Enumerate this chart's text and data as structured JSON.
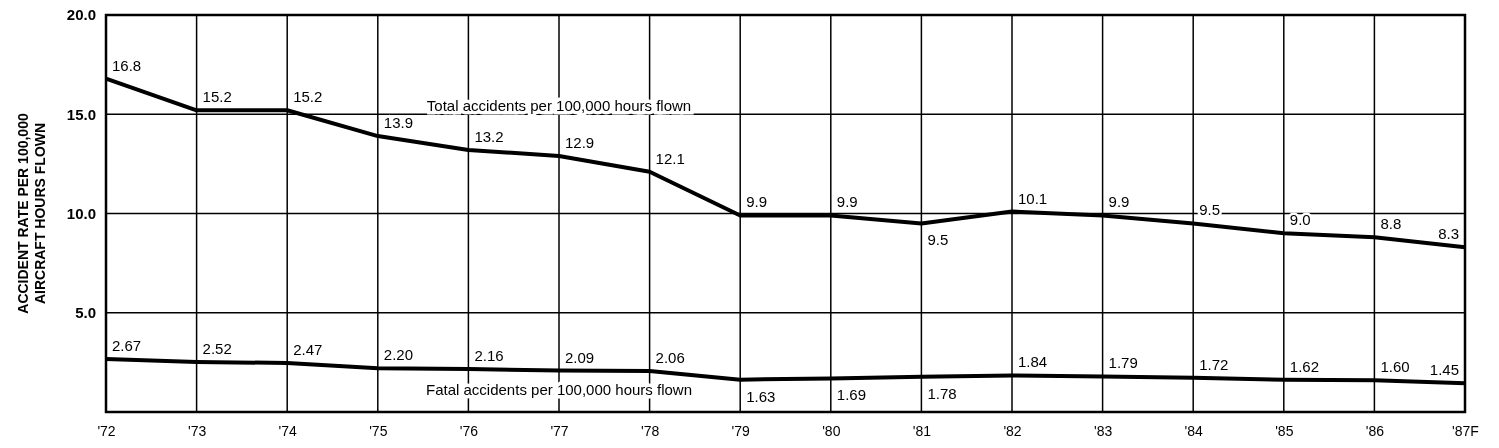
{
  "chart_data": {
    "type": "line",
    "ylabel": "ACCIDENT RATE PER 100,000\nAIRCRAFT HOURS FLOWN",
    "categories": [
      "'72",
      "'73",
      "'74",
      "'75",
      "'76",
      "'77",
      "'78",
      "'79",
      "'80",
      "'81",
      "'82",
      "'83",
      "'84",
      "'85",
      "'86",
      "'87F"
    ],
    "series": [
      {
        "name": "Total accidents per 100,000 hours flown",
        "color": "#000000",
        "values": [
          16.8,
          15.2,
          15.2,
          13.9,
          13.2,
          12.9,
          12.1,
          9.9,
          9.9,
          9.5,
          10.1,
          9.9,
          9.5,
          9.0,
          8.8,
          8.3
        ],
        "value_labels": [
          "16.8",
          "15.2",
          "15.2",
          "13.9",
          "13.2",
          "12.9",
          "12.1",
          "9.9",
          "9.9",
          "9.5",
          "10.1",
          "9.9",
          "9.5",
          "9.0",
          "8.8",
          "8.3"
        ]
      },
      {
        "name": "Fatal accidents per 100,000 hours flown",
        "color": "#000000",
        "values": [
          2.67,
          2.52,
          2.47,
          2.2,
          2.16,
          2.09,
          2.06,
          1.63,
          1.69,
          1.78,
          1.84,
          1.79,
          1.72,
          1.62,
          1.6,
          1.45
        ],
        "value_labels": [
          "2.67",
          "2.52",
          "2.47",
          "2.20",
          "2.16",
          "2.09",
          "2.06",
          "1.63",
          "1.69",
          "1.78",
          "1.84",
          "1.79",
          "1.72",
          "1.62",
          "1.60",
          "1.45"
        ]
      }
    ],
    "ylim": [
      0,
      20
    ],
    "yticks": [
      {
        "value": 5,
        "label": "5.0"
      },
      {
        "value": 10,
        "label": "10.0"
      },
      {
        "value": 15,
        "label": "15.0"
      },
      {
        "value": 20,
        "label": "20.0"
      }
    ],
    "grid": true,
    "marker": "none",
    "line_style": "solid"
  }
}
